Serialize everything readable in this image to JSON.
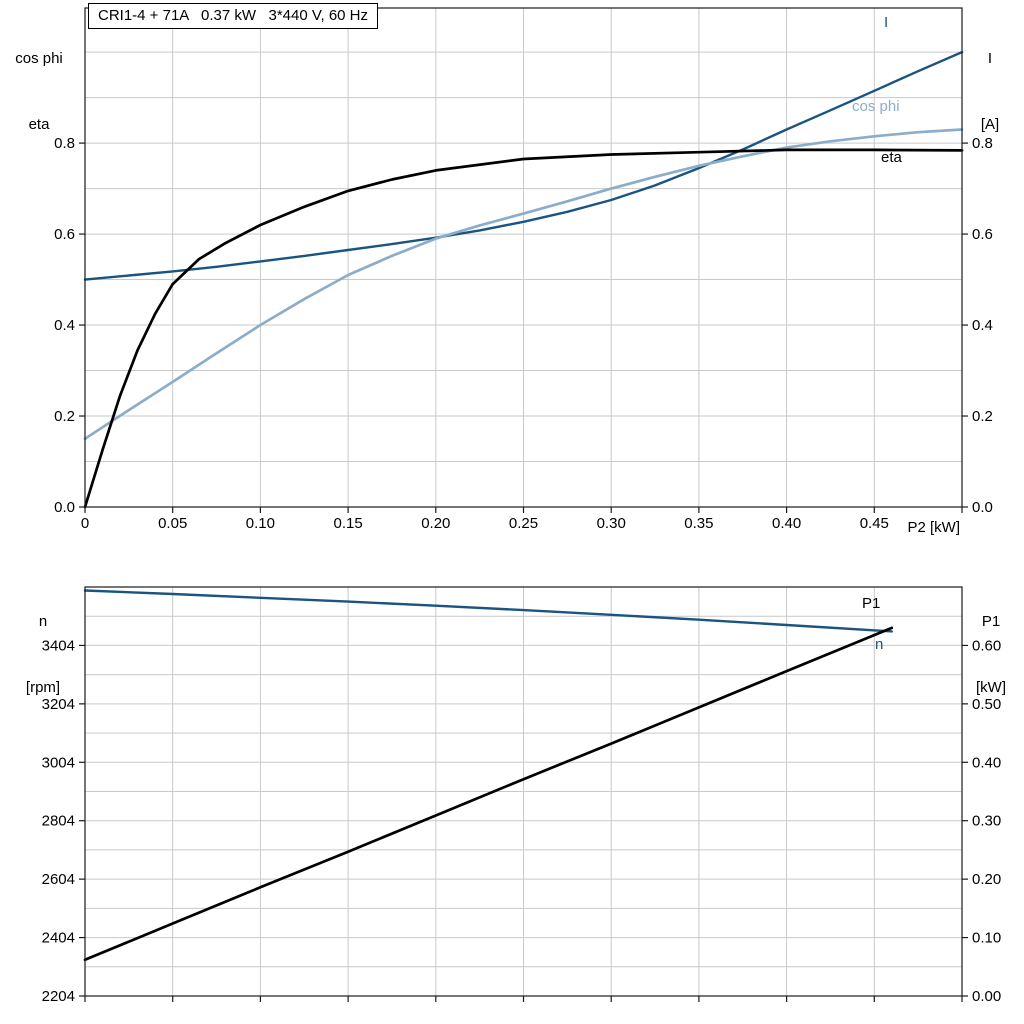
{
  "page": {
    "background": "#ffffff"
  },
  "colors": {
    "dark_blue": "#1a5480",
    "light_blue": "#8badc9",
    "black": "#000000",
    "grid": "#c9c9c9",
    "frame": "#1a1a1a"
  },
  "chart_data": [
    {
      "type": "line",
      "title": "CRI1-4 + 71A   0.37 kW   3*440 V, 60 Hz",
      "xlabel": "P2 [kW]",
      "ylabel_left": "cos phi / eta",
      "ylabel_right": "I [A]",
      "corner_labels": {
        "left": [
          "cos phi",
          "eta"
        ],
        "right": [
          "I",
          "[A]"
        ]
      },
      "xlim": [
        0,
        0.5
      ],
      "ylim": [
        0,
        1.097
      ],
      "grid": true,
      "grid_x_step": 0.05,
      "grid_y_step": 0.1,
      "legend_position": "curve-end-labels",
      "xticks": [
        0,
        0.05,
        0.1,
        0.15,
        0.2,
        0.25,
        0.3,
        0.35,
        0.4,
        0.45
      ],
      "xtick_labels": [
        "0",
        "0.05",
        "0.10",
        "0.15",
        "0.20",
        "0.25",
        "0.30",
        "0.35",
        "0.40",
        "0.45"
      ],
      "yticks": [
        0,
        0.2,
        0.4,
        0.6,
        0.8
      ],
      "ytick_labels": [
        "0.0",
        "0.2",
        "0.4",
        "0.6",
        "0.8"
      ],
      "series": [
        {
          "name": "I",
          "color_key": "dark_blue",
          "x": [
            0,
            0.025,
            0.05,
            0.075,
            0.1,
            0.125,
            0.15,
            0.175,
            0.2,
            0.225,
            0.25,
            0.275,
            0.3,
            0.325,
            0.35,
            0.375,
            0.4,
            0.425,
            0.45,
            0.475,
            0.5
          ],
          "y": [
            0.5,
            0.509,
            0.518,
            0.528,
            0.54,
            0.552,
            0.565,
            0.578,
            0.592,
            0.608,
            0.627,
            0.649,
            0.675,
            0.707,
            0.745,
            0.786,
            0.83,
            0.872,
            0.915,
            0.958,
            1.0
          ]
        },
        {
          "name": "cos phi",
          "color_key": "light_blue",
          "x": [
            0,
            0.025,
            0.05,
            0.075,
            0.1,
            0.125,
            0.15,
            0.175,
            0.2,
            0.225,
            0.25,
            0.275,
            0.3,
            0.325,
            0.35,
            0.375,
            0.4,
            0.425,
            0.45,
            0.475,
            0.5
          ],
          "y": [
            0.15,
            0.213,
            0.275,
            0.338,
            0.4,
            0.457,
            0.51,
            0.552,
            0.59,
            0.619,
            0.645,
            0.672,
            0.7,
            0.726,
            0.75,
            0.771,
            0.79,
            0.804,
            0.815,
            0.824,
            0.83
          ]
        },
        {
          "name": "eta",
          "color_key": "black",
          "x": [
            0,
            0.01,
            0.02,
            0.03,
            0.04,
            0.05,
            0.065,
            0.08,
            0.1,
            0.125,
            0.15,
            0.175,
            0.2,
            0.25,
            0.3,
            0.35,
            0.4,
            0.45,
            0.5
          ],
          "y": [
            0,
            0.125,
            0.245,
            0.345,
            0.425,
            0.49,
            0.545,
            0.58,
            0.62,
            0.66,
            0.695,
            0.72,
            0.74,
            0.765,
            0.775,
            0.78,
            0.785,
            0.785,
            0.784
          ]
        }
      ]
    },
    {
      "type": "line",
      "title": "",
      "xlabel": "",
      "ylabel_left": "n [rpm]",
      "ylabel_right": "P1 [kW]",
      "corner_labels": {
        "left": [
          "n",
          "[rpm]"
        ],
        "right": [
          "P1",
          "[kW]"
        ]
      },
      "xlim": [
        0,
        0.5
      ],
      "ylim_left": [
        2204,
        3604
      ],
      "ylim_right": [
        0,
        0.7
      ],
      "grid": true,
      "grid_x_step": 0.05,
      "grid_y_step_left": 100,
      "yticks_left": [
        2204,
        2404,
        2604,
        2804,
        3004,
        3204,
        3404
      ],
      "ytick_labels_left": [
        "2204",
        "2404",
        "2604",
        "2804",
        "3004",
        "3204",
        "3404"
      ],
      "yticks_right": [
        0,
        0.1,
        0.2,
        0.3,
        0.4,
        0.5,
        0.6
      ],
      "ytick_labels_right": [
        "0.00",
        "0.10",
        "0.20",
        "0.30",
        "0.40",
        "0.50",
        "0.60"
      ],
      "series": [
        {
          "name": "n",
          "axis": "left",
          "color_key": "dark_blue",
          "x": [
            0,
            0.05,
            0.1,
            0.15,
            0.2,
            0.25,
            0.3,
            0.35,
            0.4,
            0.46
          ],
          "y": [
            3592,
            3580,
            3567,
            3554,
            3540,
            3525,
            3509,
            3492,
            3474,
            3452
          ]
        },
        {
          "name": "P1",
          "axis": "right",
          "color_key": "black",
          "x": [
            0,
            0.05,
            0.1,
            0.15,
            0.2,
            0.25,
            0.3,
            0.35,
            0.4,
            0.46
          ],
          "y": [
            0.062,
            0.124,
            0.186,
            0.247,
            0.309,
            0.371,
            0.432,
            0.494,
            0.556,
            0.63
          ]
        }
      ]
    }
  ]
}
